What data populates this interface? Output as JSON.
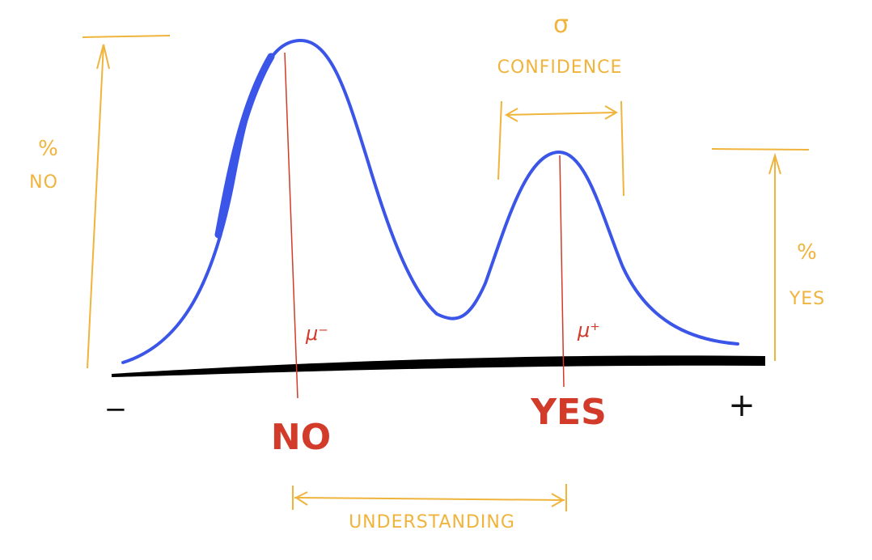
{
  "colors": {
    "curve": "#3a55e8",
    "axis": "#000000",
    "annotation": "#f0b43c",
    "marker": "#d23a2a"
  },
  "labels": {
    "sigma": "σ",
    "confidence": "CONFIDENCE",
    "pct_no_symbol": "%",
    "pct_no_word": "NO",
    "pct_yes_symbol": "%",
    "pct_yes_word": "YES",
    "mu_minus": "μ⁻",
    "mu_plus": "μ⁺",
    "no": "NO",
    "yes": "YES",
    "minus": "−",
    "plus": "+",
    "understanding": "UNDERSTANDING"
  }
}
